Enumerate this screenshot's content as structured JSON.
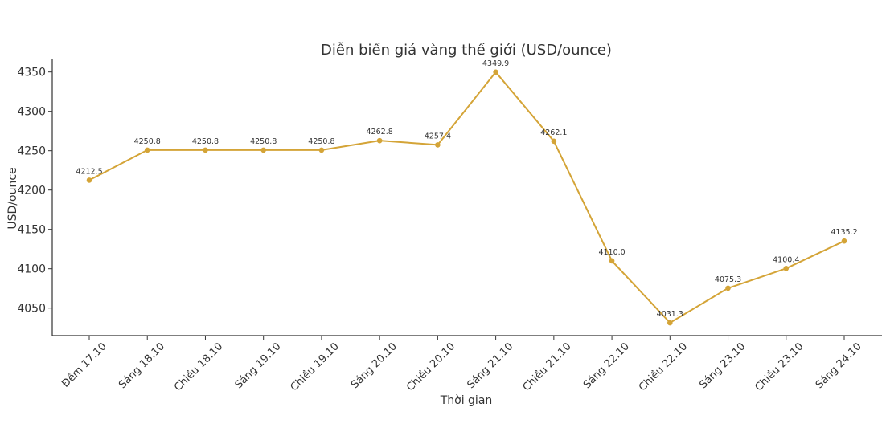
{
  "chart_data": {
    "type": "line",
    "title": "Diễn biến giá vàng thế giới (USD/ounce)",
    "xlabel": "Thời gian",
    "ylabel": "USD/ounce",
    "categories": [
      "Đêm 17.10",
      "Sáng 18.10",
      "Chiều 18.10",
      "Sáng 19.10",
      "Chiều 19.10",
      "Sáng 20.10",
      "Chiều 20.10",
      "Sáng 21.10",
      "Chiều 21.10",
      "Sáng 22.10",
      "Chiều 22.10",
      "Sáng 23.10",
      "Chiều 23.10",
      "Sáng 24.10"
    ],
    "series": [
      {
        "values": [
          4212.5,
          4250.8,
          4250.8,
          4250.8,
          4250.8,
          4262.8,
          4257.4,
          4349.9,
          4262.1,
          4110.0,
          4031.3,
          4075.3,
          4100.4,
          4135.2
        ],
        "labels": [
          "4212.5",
          "4250.8",
          "4250.8",
          "4250.8",
          "4250.8",
          "4262.8",
          "4257.4",
          "4349.9",
          "4262.1",
          "4110.0",
          "4031.3",
          "4075.3",
          "4100.4",
          "4135.2"
        ],
        "color": "#D4A437"
      }
    ],
    "ylim": [
      4015,
      4366
    ],
    "yticks": [
      "4050",
      "4100",
      "4150",
      "4200",
      "4250",
      "4300",
      "4350"
    ],
    "grid": false,
    "legend": "none"
  }
}
